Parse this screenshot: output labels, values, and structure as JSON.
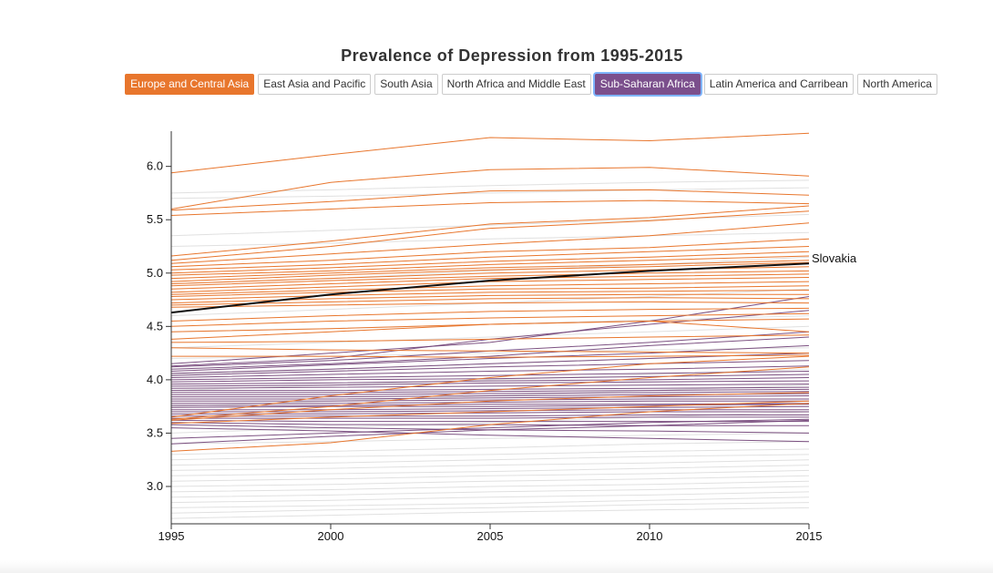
{
  "filters": [
    {
      "label": "Europe and Central Asia",
      "state": "active",
      "color": "#e8762d"
    },
    {
      "label": "East Asia and Pacific",
      "state": "inactive"
    },
    {
      "label": "South Asia",
      "state": "inactive"
    },
    {
      "label": "North Africa and Middle East",
      "state": "inactive"
    },
    {
      "label": "Sub-Saharan Africa",
      "state": "active",
      "color": "#7b4f8c"
    },
    {
      "label": "Latin America and Carribean",
      "state": "inactive"
    },
    {
      "label": "North America",
      "state": "inactive"
    }
  ],
  "chart_data": {
    "type": "line",
    "title": "Prevalence of Depression from 1995-2015",
    "xlabel": "",
    "ylabel": "",
    "x": [
      1995,
      2000,
      2005,
      2010,
      2015
    ],
    "x_ticks": [
      "1995",
      "2000",
      "2005",
      "2010",
      "2015"
    ],
    "y_ticks": [
      "3.0",
      "3.5",
      "4.0",
      "4.5",
      "5.0",
      "5.5",
      "6.0"
    ],
    "xlim": [
      1995,
      2015
    ],
    "ylim": [
      2.65,
      6.33
    ],
    "grid": false,
    "colors": {
      "europe": "#e8762d",
      "africa": "#6f3f74",
      "other": "#dddddd",
      "highlight": "#111111"
    },
    "highlight": {
      "name": "Slovakia",
      "values": [
        4.63,
        4.8,
        4.93,
        5.02,
        5.09
      ]
    },
    "europe_series": [
      [
        5.94,
        6.11,
        6.27,
        6.24,
        6.31
      ],
      [
        5.6,
        5.85,
        5.97,
        5.99,
        5.91
      ],
      [
        5.59,
        5.67,
        5.77,
        5.78,
        5.73
      ],
      [
        5.54,
        5.6,
        5.66,
        5.68,
        5.65
      ],
      [
        5.16,
        5.3,
        5.46,
        5.52,
        5.63
      ],
      [
        5.12,
        5.25,
        5.42,
        5.49,
        5.58
      ],
      [
        5.09,
        5.18,
        5.27,
        5.35,
        5.47
      ],
      [
        5.06,
        5.12,
        5.2,
        5.24,
        5.32
      ],
      [
        5.03,
        5.08,
        5.15,
        5.2,
        5.25
      ],
      [
        5.0,
        5.05,
        5.11,
        5.15,
        5.2
      ],
      [
        4.98,
        5.02,
        5.08,
        5.12,
        5.16
      ],
      [
        4.95,
        5.0,
        5.05,
        5.08,
        5.12
      ],
      [
        4.92,
        4.98,
        5.03,
        5.06,
        5.1
      ],
      [
        4.9,
        4.95,
        5.0,
        5.03,
        5.06
      ],
      [
        4.88,
        4.93,
        4.97,
        5.0,
        5.02
      ],
      [
        4.85,
        4.9,
        4.95,
        4.97,
        4.99
      ],
      [
        4.82,
        4.87,
        4.92,
        4.94,
        4.96
      ],
      [
        4.8,
        4.84,
        4.88,
        4.9,
        4.92
      ],
      [
        4.78,
        4.82,
        4.85,
        4.86,
        4.88
      ],
      [
        4.75,
        4.79,
        4.82,
        4.83,
        4.84
      ],
      [
        4.72,
        4.76,
        4.79,
        4.8,
        4.8
      ],
      [
        4.7,
        4.73,
        4.76,
        4.77,
        4.76
      ],
      [
        4.68,
        4.7,
        4.72,
        4.73,
        4.72
      ],
      [
        4.55,
        4.6,
        4.64,
        4.66,
        4.67
      ],
      [
        4.5,
        4.55,
        4.58,
        4.6,
        4.62
      ],
      [
        4.45,
        4.48,
        4.52,
        4.55,
        4.57
      ],
      [
        4.38,
        4.45,
        4.52,
        4.55,
        4.45
      ],
      [
        4.35,
        4.36,
        4.38,
        4.4,
        4.42
      ],
      [
        4.3,
        4.28,
        4.27,
        4.26,
        4.25
      ],
      [
        4.22,
        4.22,
        4.21,
        4.22,
        4.23
      ],
      [
        3.65,
        3.85,
        4.02,
        4.15,
        4.22
      ],
      [
        3.63,
        3.75,
        3.9,
        4.02,
        4.12
      ],
      [
        3.62,
        3.72,
        3.8,
        3.85,
        3.88
      ],
      [
        3.59,
        3.65,
        3.7,
        3.75,
        3.8
      ],
      [
        3.33,
        3.41,
        3.58,
        3.7,
        3.78
      ]
    ],
    "africa_series": [
      [
        4.15,
        4.25,
        4.35,
        4.55,
        4.78
      ],
      [
        4.13,
        4.2,
        4.38,
        4.52,
        4.65
      ],
      [
        4.12,
        4.18,
        4.27,
        4.35,
        4.45
      ],
      [
        4.1,
        4.15,
        4.22,
        4.32,
        4.4
      ],
      [
        4.08,
        4.14,
        4.2,
        4.25,
        4.32
      ],
      [
        4.06,
        4.1,
        4.15,
        4.2,
        4.25
      ],
      [
        4.04,
        4.08,
        4.12,
        4.15,
        4.18
      ],
      [
        4.02,
        4.05,
        4.08,
        4.1,
        4.13
      ],
      [
        4.0,
        4.02,
        4.04,
        4.06,
        4.08
      ],
      [
        3.98,
        4.0,
        4.01,
        4.03,
        4.05
      ],
      [
        3.96,
        3.97,
        3.99,
        4.0,
        4.02
      ],
      [
        3.94,
        3.95,
        3.97,
        3.98,
        3.99
      ],
      [
        3.92,
        3.93,
        3.94,
        3.95,
        3.96
      ],
      [
        3.9,
        3.9,
        3.91,
        3.92,
        3.93
      ],
      [
        3.88,
        3.88,
        3.89,
        3.9,
        3.91
      ],
      [
        3.86,
        3.86,
        3.87,
        3.88,
        3.89
      ],
      [
        3.84,
        3.84,
        3.85,
        3.86,
        3.87
      ],
      [
        3.82,
        3.82,
        3.83,
        3.84,
        3.85
      ],
      [
        3.8,
        3.8,
        3.81,
        3.82,
        3.82
      ],
      [
        3.78,
        3.78,
        3.79,
        3.8,
        3.8
      ],
      [
        3.76,
        3.76,
        3.77,
        3.77,
        3.78
      ],
      [
        3.74,
        3.75,
        3.75,
        3.76,
        3.77
      ],
      [
        3.72,
        3.72,
        3.73,
        3.74,
        3.75
      ],
      [
        3.7,
        3.7,
        3.71,
        3.72,
        3.72
      ],
      [
        3.68,
        3.68,
        3.69,
        3.7,
        3.7
      ],
      [
        3.66,
        3.66,
        3.66,
        3.67,
        3.67
      ],
      [
        3.64,
        3.64,
        3.64,
        3.65,
        3.65
      ],
      [
        3.62,
        3.61,
        3.61,
        3.61,
        3.61
      ],
      [
        3.6,
        3.58,
        3.58,
        3.57,
        3.57
      ],
      [
        3.58,
        3.55,
        3.53,
        3.52,
        3.5
      ],
      [
        3.55,
        3.52,
        3.48,
        3.45,
        3.42
      ],
      [
        3.45,
        3.5,
        3.55,
        3.6,
        3.63
      ],
      [
        3.4,
        3.47,
        3.53,
        3.57,
        3.62
      ]
    ],
    "other_series": [
      [
        5.75,
        5.78,
        5.82,
        5.85,
        5.87
      ],
      [
        5.7,
        5.72,
        5.75,
        5.78,
        5.8
      ],
      [
        5.35,
        5.4,
        5.45,
        5.5,
        5.55
      ],
      [
        5.25,
        5.28,
        5.32,
        5.35,
        5.38
      ],
      [
        4.9,
        4.95,
        5.02,
        5.08,
        5.15
      ],
      [
        4.6,
        4.66,
        4.72,
        4.78,
        4.85
      ],
      [
        4.45,
        4.48,
        4.52,
        4.56,
        4.6
      ],
      [
        4.3,
        4.35,
        4.4,
        4.45,
        4.5
      ],
      [
        4.2,
        4.22,
        4.25,
        4.28,
        4.3
      ],
      [
        4.05,
        4.1,
        4.15,
        4.2,
        4.25
      ],
      [
        3.9,
        3.95,
        4.0,
        4.05,
        4.1
      ],
      [
        3.75,
        3.8,
        3.85,
        3.9,
        3.95
      ],
      [
        3.5,
        3.55,
        3.6,
        3.65,
        3.7
      ],
      [
        3.4,
        3.42,
        3.45,
        3.48,
        3.5
      ],
      [
        3.3,
        3.33,
        3.36,
        3.4,
        3.42
      ],
      [
        3.25,
        3.28,
        3.3,
        3.33,
        3.35
      ],
      [
        3.2,
        3.22,
        3.25,
        3.28,
        3.3
      ],
      [
        3.15,
        3.17,
        3.2,
        3.22,
        3.25
      ],
      [
        3.1,
        3.12,
        3.14,
        3.17,
        3.2
      ],
      [
        3.05,
        3.07,
        3.1,
        3.12,
        3.15
      ],
      [
        3.0,
        3.02,
        3.05,
        3.07,
        3.1
      ],
      [
        2.95,
        2.97,
        3.0,
        3.02,
        3.05
      ],
      [
        2.9,
        2.92,
        2.95,
        2.97,
        3.0
      ],
      [
        2.85,
        2.87,
        2.9,
        2.92,
        2.95
      ],
      [
        2.8,
        2.82,
        2.84,
        2.87,
        2.9
      ],
      [
        2.75,
        2.78,
        2.8,
        2.83,
        2.85
      ],
      [
        2.7,
        2.73,
        2.76,
        2.78,
        2.8
      ]
    ]
  }
}
